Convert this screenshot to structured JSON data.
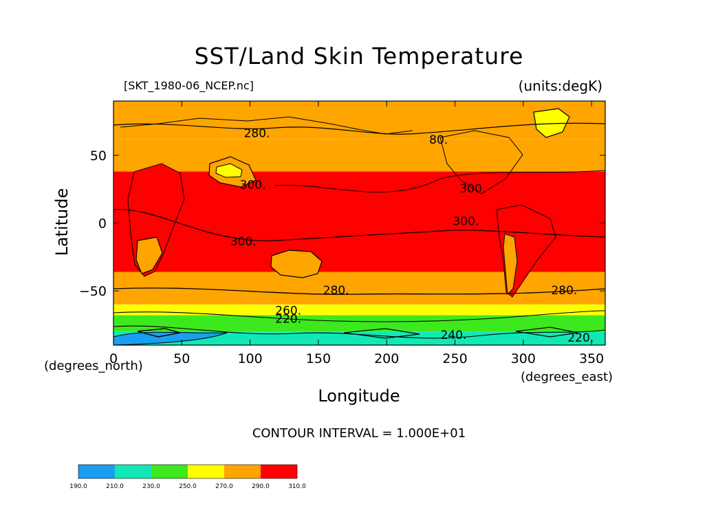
{
  "chart_data": {
    "type": "heatmap",
    "title": "SST/Land Skin Temperature",
    "file_label": "[SKT_1980-06_NCEP.nc]",
    "units_label": "(units:degK)",
    "xlabel": "Longitude",
    "ylabel": "Latitude",
    "x_unit_label": "(degrees_east)",
    "y_unit_label": "(degrees_north)",
    "contour_interval_text": "CONTOUR INTERVAL = 1.000E+01",
    "xlim": [
      0,
      360
    ],
    "ylim": [
      -90,
      90
    ],
    "xticks": [
      0,
      50,
      100,
      150,
      200,
      250,
      300,
      350
    ],
    "yticks": [
      -50,
      0,
      50
    ],
    "colorbar": {
      "levels": [
        "190.0",
        "210.0",
        "230.0",
        "250.0",
        "270.0",
        "290.0",
        "310.0"
      ],
      "colors": [
        "#1a9ef0",
        "#12e8b4",
        "#3ee81e",
        "#ffff00",
        "#ffa500",
        "#ff0000"
      ]
    },
    "bands": [
      {
        "lat_from": 90,
        "lat_to": 62,
        "value": 280,
        "color": "#ffa500"
      },
      {
        "lat_from": 62,
        "lat_to": 38,
        "value": 285,
        "color": "#ffa500"
      },
      {
        "lat_from": 38,
        "lat_to": -36,
        "value": 300,
        "color": "#ff0000"
      },
      {
        "lat_from": -36,
        "lat_to": -60,
        "value": 280,
        "color": "#ffa500"
      },
      {
        "lat_from": -60,
        "lat_to": -68,
        "value": 260,
        "color": "#ffff00"
      },
      {
        "lat_from": -68,
        "lat_to": -80,
        "value": 240,
        "color": "#3ee81e"
      },
      {
        "lat_from": -80,
        "lat_to": -90,
        "value": 220,
        "color": "#12e8b4"
      }
    ],
    "contour_labels": [
      {
        "text": "280.",
        "lon": 105,
        "lat": 66
      },
      {
        "text": "280.",
        "lon": 163,
        "lat": -50
      },
      {
        "text": "280.",
        "lon": 330,
        "lat": -50
      },
      {
        "text": "300.",
        "lon": 95,
        "lat": -14
      },
      {
        "text": "300.",
        "lon": 258,
        "lat": 1
      },
      {
        "text": "300.",
        "lon": 263,
        "lat": 25
      },
      {
        "text": "300.",
        "lon": 102,
        "lat": 28
      },
      {
        "text": "80.",
        "lon": 238,
        "lat": 61
      },
      {
        "text": "260.",
        "lon": 128,
        "lat": -65
      },
      {
        "text": "220.",
        "lon": 128,
        "lat": -71
      },
      {
        "text": "240.",
        "lon": 249,
        "lat": -83
      },
      {
        "text": "220.",
        "lon": 342,
        "lat": -85
      }
    ]
  }
}
